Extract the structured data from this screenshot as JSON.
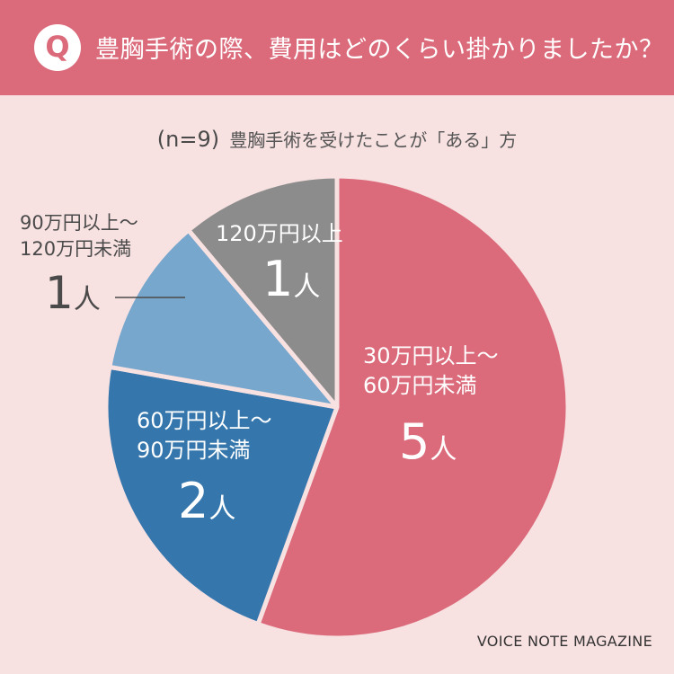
{
  "header": {
    "badge": "Q",
    "question": "豊胸手術の際、費用はどのくらい掛かりましたか？"
  },
  "subtitle": {
    "sample": "(n=9)",
    "description": "豊胸手術を受けたことが「ある」方"
  },
  "credit": "VOICE NOTE MAGAZINE",
  "unit": "人",
  "chart_data": {
    "type": "pie",
    "categories": [
      "30万円以上〜60万円未満",
      "60万円以上〜90万円未満",
      "90万円以上〜120万円未満",
      "120万円以上"
    ],
    "values": [
      5,
      2,
      1,
      1
    ],
    "colors": [
      "#db6b7b",
      "#3577ad",
      "#78a7cd",
      "#8c8c8c"
    ],
    "start_angle": "12 o'clock",
    "direction": "clockwise"
  },
  "labels": [
    {
      "line1": "30万円以上〜",
      "line2": "60万円未満",
      "count": "5"
    },
    {
      "line1": "60万円以上〜",
      "line2": "90万円未満",
      "count": "2"
    },
    {
      "line1": "90万円以上〜",
      "line2": "120万円未満",
      "count": "1"
    },
    {
      "line1": "120万円以上",
      "line2": "",
      "count": "1"
    }
  ]
}
